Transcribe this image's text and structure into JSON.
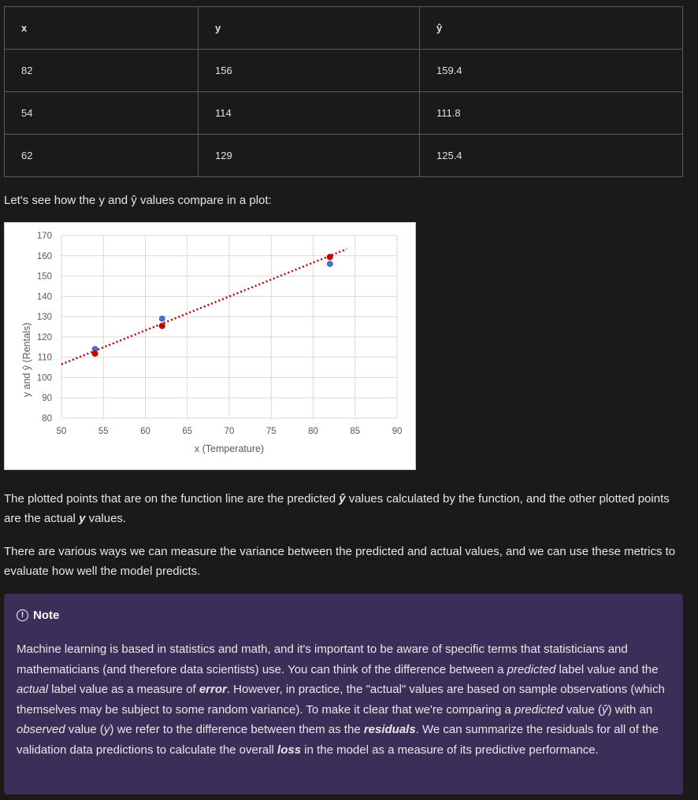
{
  "table": {
    "headers": [
      "x",
      "y",
      "ŷ"
    ],
    "rows": [
      [
        "82",
        "156",
        "159.4"
      ],
      [
        "54",
        "114",
        "111.8"
      ],
      [
        "62",
        "129",
        "125.4"
      ]
    ]
  },
  "text": {
    "intro": "Let's see how the y and ŷ values compare in a plot:",
    "para1_a": "The plotted points that are on the function line are the predicted ",
    "para1_b": "ŷ",
    "para1_c": " values calculated by the function, and the other plotted points are the actual ",
    "para1_d": "y",
    "para1_e": " values.",
    "para2": "There are various ways we can measure the variance between the predicted and actual values, and we can use these metrics to evaluate how well the model predicts."
  },
  "note": {
    "icon": "info-icon",
    "title": "Note",
    "s1": "Machine learning is based in statistics and math, and it's important to be aware of specific terms that statisticians and mathematicians (and therefore data scientists) use. You can think of the difference between a ",
    "s2": "predicted",
    "s3": " label value and the ",
    "s4": "actual",
    "s5": " label value as a measure of ",
    "s6": "error",
    "s7": ". However, in practice, the \"actual\" values are based on sample observations (which themselves may be subject to some random variance). To make it clear that we're comparing a ",
    "s8": "predicted",
    "s9": " value (",
    "s10": "ŷ",
    "s11": ") with an ",
    "s12": "observed",
    "s13": " value (",
    "s14": "y",
    "s15": ") we refer to the difference between them as the ",
    "s16": "residuals",
    "s17": ". We can summarize the residuals for all of the validation data predictions to calculate the overall ",
    "s18": "loss",
    "s19": " in the model as a measure of its predictive performance."
  },
  "chart_data": {
    "type": "scatter",
    "xlabel": "x (Temperature)",
    "ylabel": "y and ŷ (Rentals)",
    "xlim": [
      50,
      90
    ],
    "ylim": [
      80,
      170
    ],
    "xticks": [
      50,
      55,
      60,
      65,
      70,
      75,
      80,
      85,
      90
    ],
    "yticks": [
      80,
      90,
      100,
      110,
      120,
      130,
      140,
      150,
      160,
      170
    ],
    "grid": true,
    "series": [
      {
        "x": [
          82,
          54,
          62
        ],
        "values": [
          156,
          114,
          129
        ],
        "color": "#4472c4"
      },
      {
        "x": [
          82,
          54,
          62
        ],
        "values": [
          159.4,
          111.8,
          125.4
        ],
        "color": "#c00000"
      }
    ],
    "trendline": {
      "x": [
        50,
        84
      ],
      "values": [
        106.5,
        163.3
      ],
      "color": "#c00000",
      "style": "dotted"
    }
  }
}
